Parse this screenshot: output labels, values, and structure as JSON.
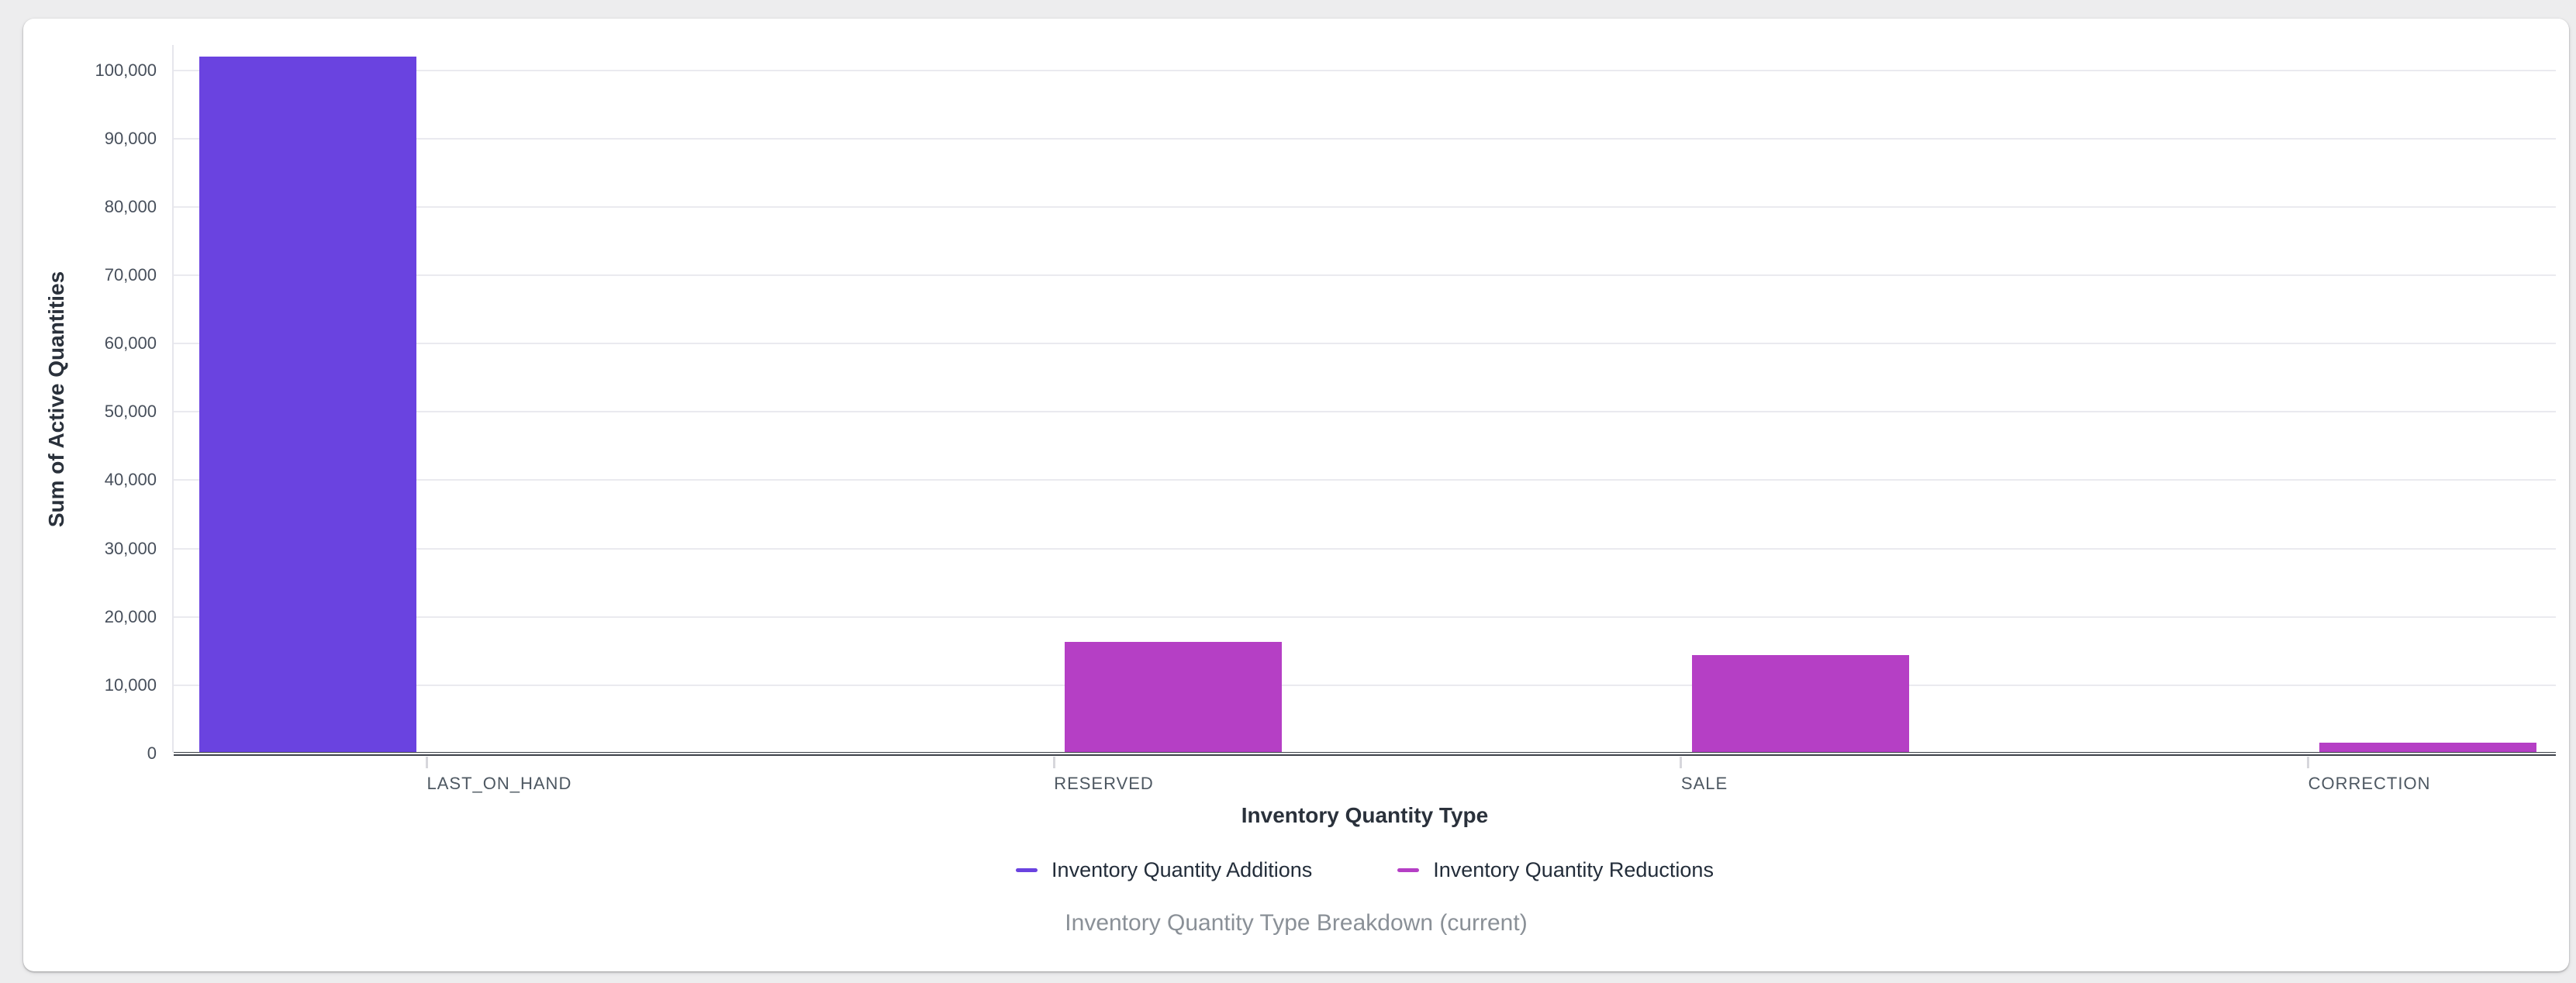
{
  "page": {
    "background_color": "#ededee",
    "card_color": "#ffffff"
  },
  "chart_data": {
    "type": "bar",
    "title": "Inventory Quantity Type Breakdown (current)",
    "xlabel": "Inventory Quantity Type",
    "ylabel": "Sum of Active Quantities",
    "categories": [
      "LAST_ON_HAND",
      "RESERVED",
      "SALE",
      "CORRECTION"
    ],
    "series": [
      {
        "name": "Inventory Quantity Additions",
        "color": "#6a43e0",
        "values": [
          102000,
          null,
          null,
          null
        ]
      },
      {
        "name": "Inventory Quantity Reductions",
        "color": "#b53fc5",
        "values": [
          null,
          16300,
          14400,
          1600
        ]
      }
    ],
    "yticks": [
      0,
      10000,
      20000,
      30000,
      40000,
      50000,
      60000,
      70000,
      80000,
      90000,
      100000
    ],
    "ylim": [
      0,
      103700
    ],
    "grid": true,
    "legend_position": "bottom",
    "gridline_color": "#eaeaef",
    "axis_line_color": "#3d4249"
  }
}
